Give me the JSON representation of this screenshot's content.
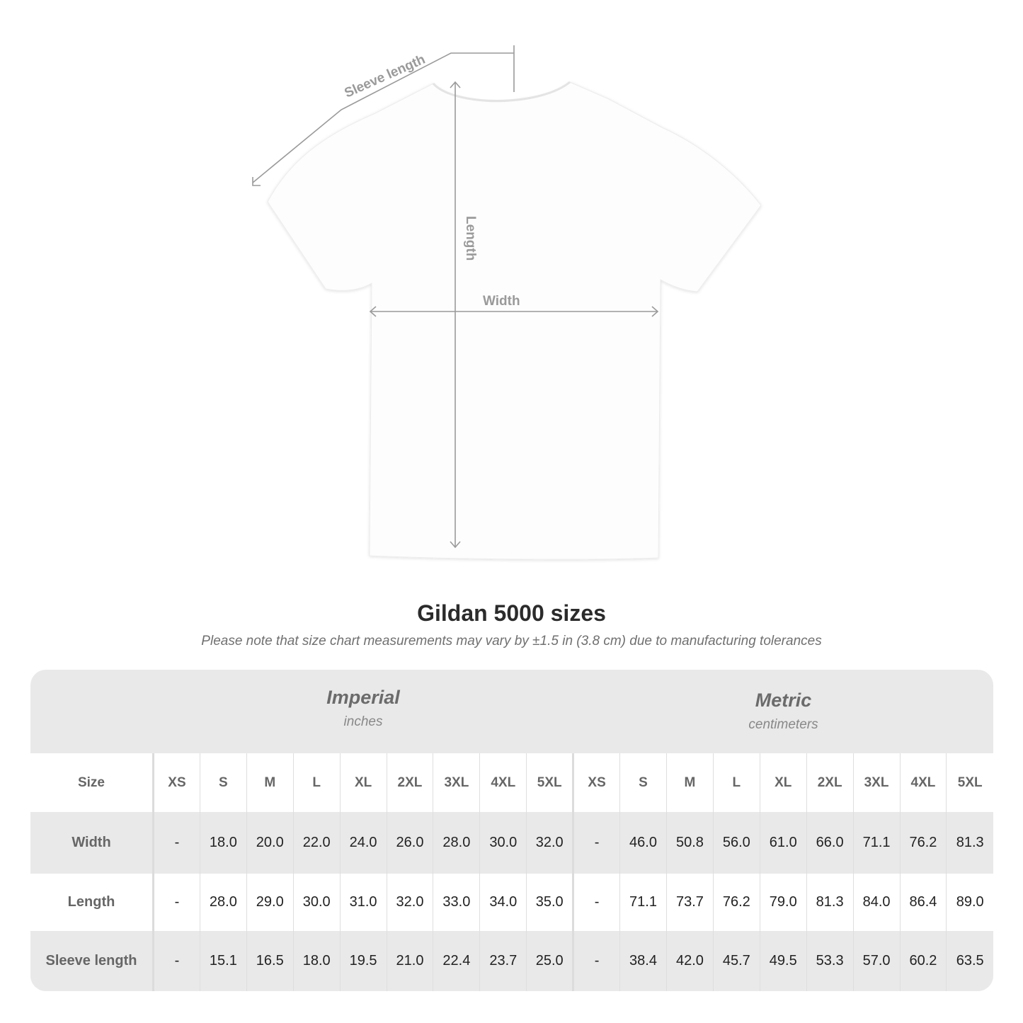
{
  "diagram": {
    "labels": {
      "sleeve": "Sleeve length",
      "length": "Length",
      "width": "Width"
    },
    "line_color": "#9a9a9a"
  },
  "title": "Gildan 5000 sizes",
  "note": "Please note that size chart measurements may vary by ±1.5 in (3.8 cm) due to manufacturing tolerances",
  "table": {
    "imperial": {
      "name": "Imperial",
      "unit": "inches"
    },
    "metric": {
      "name": "Metric",
      "unit": "centimeters"
    },
    "size_label": "Size",
    "sizes": [
      "XS",
      "S",
      "M",
      "L",
      "XL",
      "2XL",
      "3XL",
      "4XL",
      "5XL"
    ],
    "rows": [
      {
        "label": "Width",
        "imperial": [
          "-",
          "18.0",
          "20.0",
          "22.0",
          "24.0",
          "26.0",
          "28.0",
          "30.0",
          "32.0"
        ],
        "metric": [
          "-",
          "46.0",
          "50.8",
          "56.0",
          "61.0",
          "66.0",
          "71.1",
          "76.2",
          "81.3"
        ]
      },
      {
        "label": "Length",
        "imperial": [
          "-",
          "28.0",
          "29.0",
          "30.0",
          "31.0",
          "32.0",
          "33.0",
          "34.0",
          "35.0"
        ],
        "metric": [
          "-",
          "71.1",
          "73.7",
          "76.2",
          "79.0",
          "81.3",
          "84.0",
          "86.4",
          "89.0"
        ]
      },
      {
        "label": "Sleeve length",
        "imperial": [
          "-",
          "15.1",
          "16.5",
          "18.0",
          "19.5",
          "21.0",
          "22.4",
          "23.7",
          "25.0"
        ],
        "metric": [
          "-",
          "38.4",
          "42.0",
          "45.7",
          "49.5",
          "53.3",
          "57.0",
          "60.2",
          "63.5"
        ]
      }
    ]
  }
}
